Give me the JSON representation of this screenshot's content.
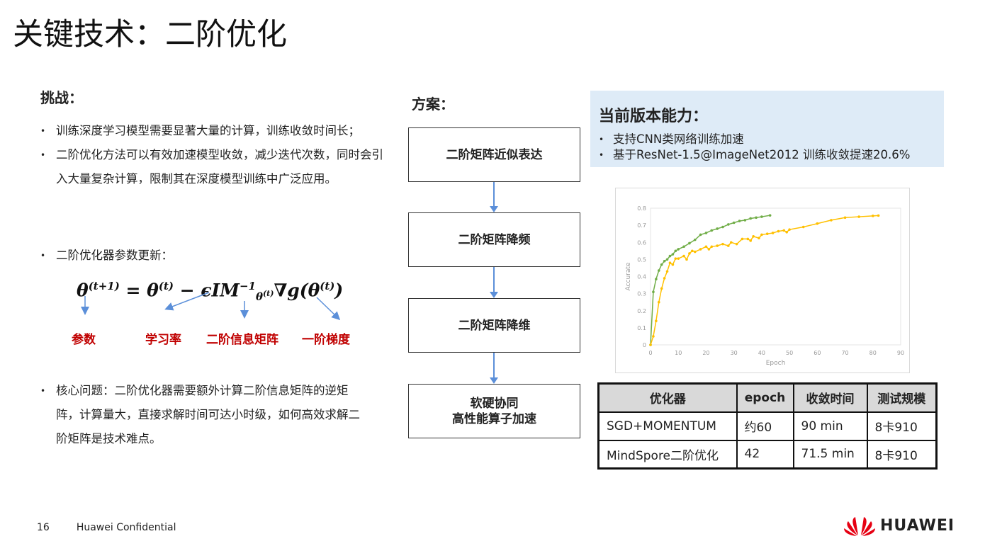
{
  "title": "关键技术：二阶优化",
  "challenge": {
    "heading": "挑战：",
    "bullets": [
      "训练深度学习模型需要显著大量的计算，训练收敛时间长；",
      "二阶优化方法可以有效加速模型收敛，减少迭代次数，同时会引入大量复杂计算，限制其在深度模型训练中广泛应用。",
      "二阶优化器参数更新：",
      "核心问题：二阶优化器需要额外计算二阶信息矩阵的逆矩阵，计算量大，直接求解时间可达小时级，如何高效求解二阶矩阵是技术难点。"
    ]
  },
  "formula": {
    "lhs": "θ",
    "lhs_sup": "(t+1)",
    "eq": " = θ",
    "eq_sup": "(t)",
    "minus": " − ϵIM",
    "m_sup": "−1",
    "m_sub": "θ",
    "m_sub_sup": "(t)",
    "grad": "∇g(θ",
    "grad_sup": "(t)",
    "close": ")"
  },
  "formula_labels": [
    "参数",
    "学习率",
    "二阶信息矩阵",
    "一阶梯度"
  ],
  "solution": {
    "heading": "方案：",
    "steps": [
      "二阶矩阵近似表达",
      "二阶矩阵降频",
      "二阶矩阵降维",
      "软硬协同\n高性能算子加速"
    ]
  },
  "capability": {
    "heading": "当前版本能力：",
    "bullets": [
      "支持CNN类网络训练加速",
      "基于ResNet-1.5@ImageNet2012 训练收敛提速20.6%"
    ]
  },
  "chart_data": {
    "type": "line",
    "xlabel": "Epoch",
    "ylabel": "Accurate",
    "xlim": [
      0,
      90
    ],
    "ylim": [
      0,
      0.8
    ],
    "xticks": [
      0,
      10,
      20,
      30,
      40,
      50,
      60,
      70,
      80,
      90
    ],
    "yticks": [
      0,
      0.1,
      0.2,
      0.3,
      0.4,
      0.5,
      0.6,
      0.7,
      0.8
    ],
    "grid": false,
    "legend": "none",
    "series": [
      {
        "color": "#70ad47",
        "x": [
          0,
          1,
          2,
          3,
          4,
          5,
          6,
          7,
          8,
          9,
          10,
          12,
          14,
          16,
          18,
          20,
          22,
          24,
          26,
          28,
          30,
          32,
          34,
          36,
          38,
          40,
          43
        ],
        "y": [
          0,
          0.31,
          0.385,
          0.435,
          0.47,
          0.49,
          0.5,
          0.52,
          0.53,
          0.55,
          0.56,
          0.575,
          0.595,
          0.615,
          0.645,
          0.655,
          0.67,
          0.68,
          0.69,
          0.705,
          0.715,
          0.725,
          0.73,
          0.74,
          0.745,
          0.75,
          0.758
        ]
      },
      {
        "color": "#ffc000",
        "x": [
          0,
          1,
          2,
          3,
          4,
          5,
          6,
          7,
          8,
          9,
          10,
          12,
          13,
          14,
          15,
          16,
          18,
          20,
          21,
          22,
          24,
          26,
          28,
          29,
          31,
          33,
          35,
          36,
          37,
          39,
          40,
          42,
          44,
          46,
          48,
          49,
          50,
          55,
          60,
          65,
          70,
          75,
          80,
          82
        ],
        "y": [
          0,
          0.05,
          0.14,
          0.25,
          0.33,
          0.39,
          0.43,
          0.48,
          0.47,
          0.505,
          0.505,
          0.52,
          0.5,
          0.535,
          0.55,
          0.545,
          0.56,
          0.575,
          0.56,
          0.575,
          0.58,
          0.59,
          0.58,
          0.6,
          0.59,
          0.62,
          0.62,
          0.61,
          0.635,
          0.625,
          0.645,
          0.65,
          0.655,
          0.665,
          0.67,
          0.66,
          0.675,
          0.69,
          0.71,
          0.73,
          0.745,
          0.75,
          0.755,
          0.757
        ]
      }
    ]
  },
  "table": {
    "headers": [
      "优化器",
      "epoch",
      "收敛时间",
      "测试规模"
    ],
    "rows": [
      [
        "SGD+MOMENTUM",
        "约60",
        "90 min",
        "8卡910"
      ],
      [
        "MindSpore二阶优化",
        "42",
        "71.5 min",
        "8卡910"
      ]
    ]
  },
  "footer": {
    "page": "16",
    "confidential": "Huawei Confidential",
    "logo_text": "HUAWEI",
    "brand_color": "#e60012"
  }
}
